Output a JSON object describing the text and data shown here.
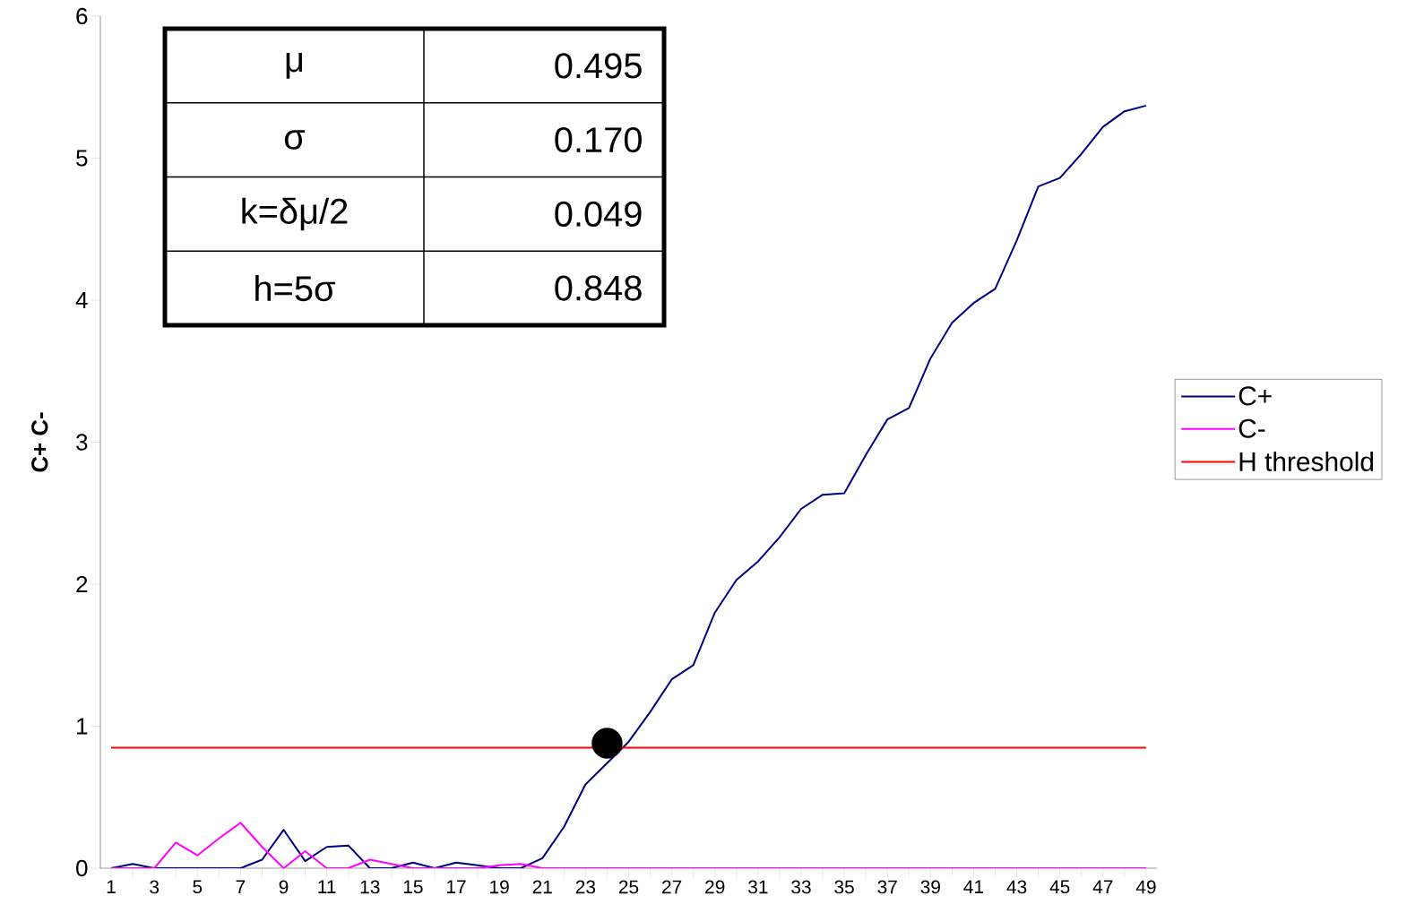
{
  "chart_data": {
    "type": "line",
    "ylabel": "C+ C-",
    "x": [
      1,
      2,
      3,
      4,
      5,
      6,
      7,
      8,
      9,
      10,
      11,
      12,
      13,
      14,
      15,
      16,
      17,
      18,
      19,
      20,
      21,
      22,
      23,
      24,
      25,
      26,
      27,
      28,
      29,
      30,
      31,
      32,
      33,
      34,
      35,
      36,
      37,
      38,
      39,
      40,
      41,
      42,
      43,
      44,
      45,
      46,
      47,
      48,
      49
    ],
    "series": [
      {
        "name": "C+",
        "color": "#000080",
        "values": [
          0,
          0.03,
          0,
          0,
          0,
          0,
          0,
          0.06,
          0.27,
          0.05,
          0.15,
          0.16,
          0,
          0,
          0.04,
          0,
          0.04,
          0.02,
          0,
          0,
          0.07,
          0.29,
          0.59,
          null,
          0.89,
          1.1,
          1.33,
          1.43,
          1.8,
          2.03,
          2.16,
          2.33,
          2.53,
          2.63,
          2.64,
          2.91,
          3.16,
          3.24,
          3.59,
          3.84,
          3.98,
          4.08,
          4.42,
          4.8,
          4.86,
          5.03,
          5.22,
          5.33,
          5.37
        ]
      },
      {
        "name": "C-",
        "color": "#ff00ff",
        "values": [
          0,
          0,
          0,
          0.18,
          0.09,
          0.21,
          0.32,
          0.15,
          0,
          0.12,
          0,
          0,
          0.06,
          0.03,
          0,
          0,
          0,
          0,
          0.02,
          0.03,
          0,
          0,
          0,
          0,
          0,
          0,
          0,
          0,
          0,
          0,
          0,
          0,
          0,
          0,
          0,
          0,
          0,
          0,
          0,
          0,
          0,
          0,
          0,
          0,
          0,
          0,
          0,
          0,
          0
        ]
      },
      {
        "name": "H threshold",
        "color": "#ff0000",
        "x": [
          1,
          49
        ],
        "values": [
          0.848,
          0.848
        ]
      },
      {
        "type": "scatter",
        "color": "#000000",
        "marker": "circle",
        "x": [
          24
        ],
        "values": [
          0.88
        ]
      }
    ],
    "xlim": [
      0.5,
      49.5
    ],
    "ylim": [
      0,
      6
    ],
    "xticks": [
      1,
      3,
      5,
      7,
      9,
      11,
      13,
      15,
      17,
      19,
      21,
      23,
      25,
      27,
      29,
      31,
      33,
      35,
      37,
      39,
      41,
      43,
      45,
      47,
      49
    ],
    "yticks": [
      0,
      1,
      2,
      3,
      4,
      5,
      6
    ],
    "legend": "right",
    "annotations": [
      "μ",
      "0.495",
      "σ",
      "0.170",
      "k=δμ/2",
      "0.049",
      "h=5σ",
      "0.848"
    ]
  }
}
